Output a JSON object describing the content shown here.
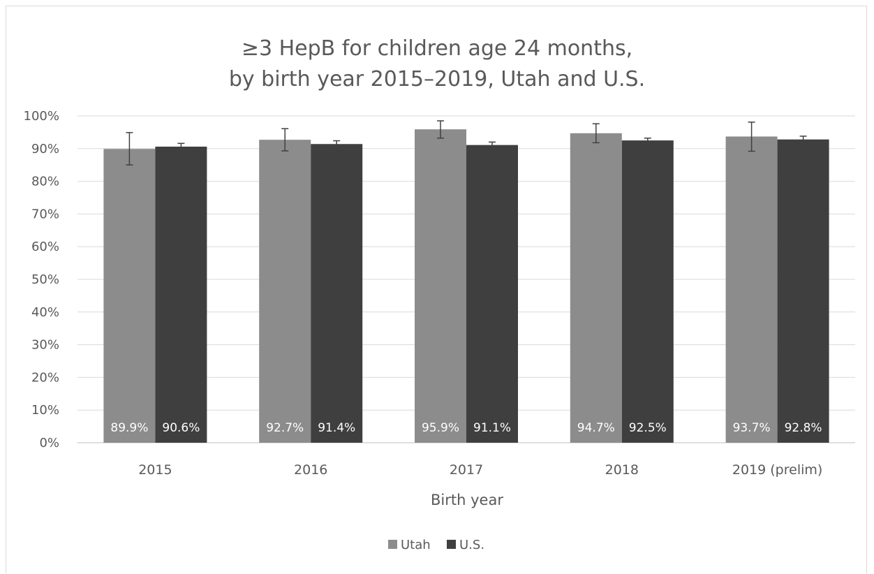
{
  "chart_data": {
    "type": "bar",
    "title": [
      "≥3 HepB for children age 24 months,",
      "by birth year 2015–2019, Utah and U.S."
    ],
    "xlabel": "Birth year",
    "ylabel": "",
    "ylim": [
      0,
      100
    ],
    "ytick_values": [
      0,
      10,
      20,
      30,
      40,
      50,
      60,
      70,
      80,
      90,
      100
    ],
    "ytick_labels": [
      "0%",
      "10%",
      "20%",
      "30%",
      "40%",
      "50%",
      "60%",
      "70%",
      "80%",
      "90%",
      "100%"
    ],
    "grid": true,
    "legend_position": "bottom",
    "categories": [
      "2015",
      "2016",
      "2017",
      "2018",
      "2019 (prelim)"
    ],
    "series": [
      {
        "name": "Utah",
        "color": "#8c8c8c",
        "values": [
          89.9,
          92.7,
          95.9,
          94.7,
          93.7
        ],
        "labels": [
          "89.9%",
          "92.7%",
          "95.9%",
          "94.7%",
          "93.7%"
        ],
        "error_low": [
          85.0,
          89.3,
          93.2,
          91.8,
          89.2
        ],
        "error_high": [
          94.9,
          96.1,
          98.5,
          97.6,
          98.1
        ]
      },
      {
        "name": "U.S.",
        "color": "#3f3f3f",
        "values": [
          90.6,
          91.4,
          91.1,
          92.5,
          92.8
        ],
        "labels": [
          "90.6%",
          "91.4%",
          "91.1%",
          "92.5%",
          "92.8%"
        ],
        "error_low": [
          89.6,
          90.4,
          90.2,
          91.8,
          91.8
        ],
        "error_high": [
          91.6,
          92.4,
          92.0,
          93.2,
          93.8
        ]
      }
    ]
  }
}
